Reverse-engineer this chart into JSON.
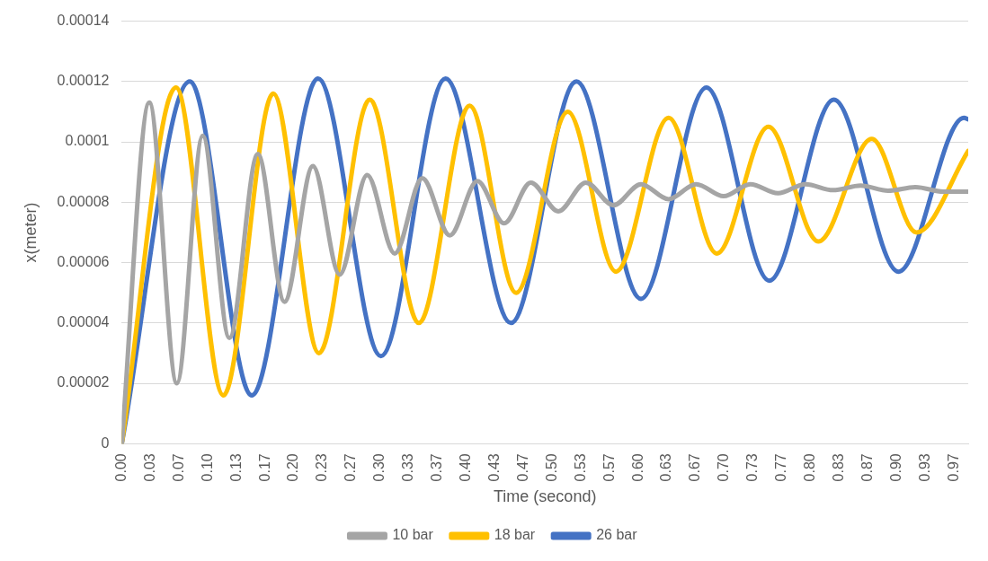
{
  "chart_data": {
    "type": "line",
    "xlabel": "Time (second)",
    "ylabel": "x(meter)",
    "xlim": [
      0,
      0.983
    ],
    "ylim": [
      0,
      0.00014
    ],
    "xticks": [
      {
        "value": 0,
        "label": "0.00"
      },
      {
        "value": 0.0333,
        "label": "0.03"
      },
      {
        "value": 0.0667,
        "label": "0.07"
      },
      {
        "value": 0.1,
        "label": "0.10"
      },
      {
        "value": 0.1333,
        "label": "0.13"
      },
      {
        "value": 0.1667,
        "label": "0.17"
      },
      {
        "value": 0.2,
        "label": "0.20"
      },
      {
        "value": 0.2333,
        "label": "0.23"
      },
      {
        "value": 0.2667,
        "label": "0.27"
      },
      {
        "value": 0.3,
        "label": "0.30"
      },
      {
        "value": 0.3333,
        "label": "0.33"
      },
      {
        "value": 0.3667,
        "label": "0.37"
      },
      {
        "value": 0.4,
        "label": "0.40"
      },
      {
        "value": 0.4333,
        "label": "0.43"
      },
      {
        "value": 0.4667,
        "label": "0.47"
      },
      {
        "value": 0.5,
        "label": "0.50"
      },
      {
        "value": 0.5333,
        "label": "0.53"
      },
      {
        "value": 0.5667,
        "label": "0.57"
      },
      {
        "value": 0.6,
        "label": "0.60"
      },
      {
        "value": 0.6333,
        "label": "0.63"
      },
      {
        "value": 0.6667,
        "label": "0.67"
      },
      {
        "value": 0.7,
        "label": "0.70"
      },
      {
        "value": 0.7333,
        "label": "0.73"
      },
      {
        "value": 0.7667,
        "label": "0.77"
      },
      {
        "value": 0.8,
        "label": "0.80"
      },
      {
        "value": 0.8333,
        "label": "0.83"
      },
      {
        "value": 0.8667,
        "label": "0.87"
      },
      {
        "value": 0.9,
        "label": "0.90"
      },
      {
        "value": 0.9333,
        "label": "0.93"
      },
      {
        "value": 0.9667,
        "label": "0.97"
      }
    ],
    "yticks": [
      0,
      {
        "value": 2e-05,
        "label": "0.00002"
      },
      {
        "value": 4e-05,
        "label": "0.00004"
      },
      {
        "value": 6e-05,
        "label": "0.00006"
      },
      {
        "value": 8e-05,
        "label": "0.00008"
      },
      {
        "value": 0.0001,
        "label": "0.0001"
      },
      {
        "value": 0.00012,
        "label": "0.00012"
      },
      {
        "value": 0.00014,
        "label": "0.00014"
      }
    ],
    "grid": "y",
    "legend": "bottom",
    "marker": "none",
    "series": [
      {
        "name": "10 bar",
        "color": "#a5a5a5",
        "x": [
          0,
          0.032,
          0.064,
          0.094,
          0.125,
          0.158,
          0.189,
          0.222,
          0.253,
          0.285,
          0.317,
          0.349,
          0.381,
          0.413,
          0.444,
          0.475,
          0.507,
          0.539,
          0.571,
          0.603,
          0.635,
          0.667,
          0.699,
          0.73,
          0.762,
          0.794,
          0.826,
          0.858,
          0.89,
          0.922,
          0.954,
          0.983
        ],
        "values": [
          0,
          0.000113,
          2e-05,
          0.000102,
          3.5e-05,
          9.6e-05,
          4.7e-05,
          9.2e-05,
          5.6e-05,
          8.9e-05,
          6.3e-05,
          8.8e-05,
          6.9e-05,
          8.7e-05,
          7.3e-05,
          8.65e-05,
          7.7e-05,
          8.65e-05,
          7.9e-05,
          8.6e-05,
          8.1e-05,
          8.6e-05,
          8.2e-05,
          8.6e-05,
          8.3e-05,
          8.6e-05,
          8.4e-05,
          8.55e-05,
          8.38e-05,
          8.5e-05,
          8.35e-05,
          8.35e-05
        ]
      },
      {
        "name": "18 bar",
        "color": "#ffc000",
        "x": [
          0,
          0.063,
          0.118,
          0.176,
          0.229,
          0.288,
          0.345,
          0.404,
          0.458,
          0.518,
          0.574,
          0.635,
          0.691,
          0.751,
          0.809,
          0.871,
          0.923,
          0.983
        ],
        "values": [
          0,
          0.000118,
          1.6e-05,
          0.000116,
          3e-05,
          0.000114,
          4e-05,
          0.000112,
          5e-05,
          0.00011,
          5.7e-05,
          0.000108,
          6.3e-05,
          0.000105,
          6.7e-05,
          0.000101,
          7e-05,
          9.7e-05
        ]
      },
      {
        "name": "26 bar",
        "color": "#4472c4",
        "x": [
          0,
          0.079,
          0.151,
          0.228,
          0.301,
          0.376,
          0.452,
          0.528,
          0.603,
          0.679,
          0.752,
          0.827,
          0.902,
          0.978,
          0.983
        ],
        "values": [
          0,
          0.00012,
          1.6e-05,
          0.000121,
          2.9e-05,
          0.000121,
          4e-05,
          0.00012,
          4.8e-05,
          0.000118,
          5.4e-05,
          0.000114,
          5.7e-05,
          0.000108,
          0.0001075
        ]
      }
    ]
  }
}
